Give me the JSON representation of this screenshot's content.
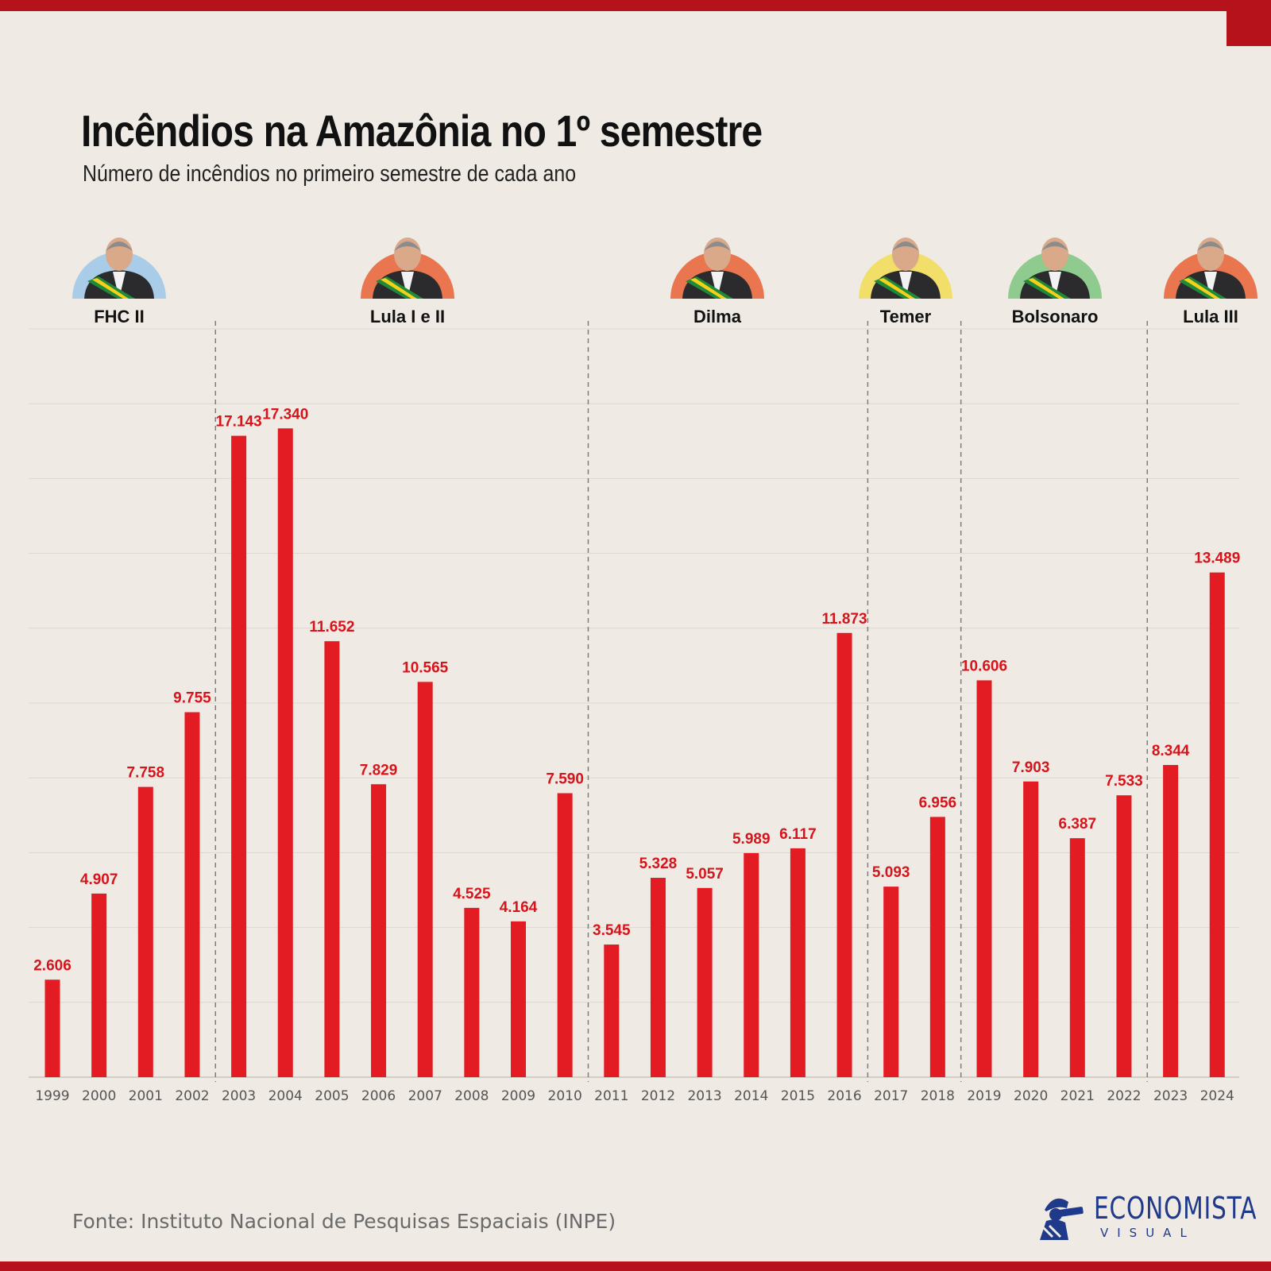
{
  "header": {
    "title": "Incêndios na Amazônia no 1º semestre",
    "subtitle": "Número de incêndios no primeiro semestre de cada ano"
  },
  "footer": {
    "source": "Fonte: Instituto Nacional de Pesquisas Espaciais (INPE)",
    "logo_main": "ECONOMISTA",
    "logo_sub": "VISUAL"
  },
  "colors": {
    "bar": "#e31b23",
    "label": "#d7141c",
    "accent": "#b5121b",
    "blue": "#a9cde9",
    "orange": "#e9764f",
    "yellow": "#f2df6a",
    "green": "#8fcb8f"
  },
  "governments": [
    {
      "name": "FHC II",
      "color": "blue",
      "years": [
        1999,
        2002
      ]
    },
    {
      "name": "Lula I e II",
      "color": "orange",
      "years": [
        2003,
        2010
      ]
    },
    {
      "name": "Dilma",
      "color": "orange",
      "years": [
        2011,
        2016
      ]
    },
    {
      "name": "Temer",
      "color": "yellow",
      "years": [
        2016,
        2018
      ]
    },
    {
      "name": "Bolsonaro",
      "color": "green",
      "years": [
        2019,
        2022
      ]
    },
    {
      "name": "Lula III",
      "color": "orange",
      "years": [
        2023,
        2024
      ]
    }
  ],
  "chart_data": {
    "type": "bar",
    "categories": [
      "1999",
      "2000",
      "2001",
      "2002",
      "2003",
      "2004",
      "2005",
      "2006",
      "2007",
      "2008",
      "2009",
      "2010",
      "2011",
      "2012",
      "2013",
      "2014",
      "2015",
      "2016",
      "2017",
      "2018",
      "2019",
      "2020",
      "2021",
      "2022",
      "2023",
      "2024"
    ],
    "values": [
      2606,
      4907,
      7758,
      9755,
      17143,
      17340,
      11652,
      7829,
      10565,
      4525,
      4164,
      7590,
      3545,
      5328,
      5057,
      5989,
      6117,
      11873,
      5093,
      6956,
      10606,
      7903,
      6387,
      7533,
      8344,
      13489
    ],
    "value_labels": [
      "2.606",
      "4.907",
      "7.758",
      "9.755",
      "17.143",
      "17.340",
      "11.652",
      "7.829",
      "10.565",
      "4.525",
      "4.164",
      "7.590",
      "3.545",
      "5.328",
      "5.057",
      "5.989",
      "6.117",
      "11.873",
      "5.093",
      "6.956",
      "10.606",
      "7.903",
      "6.387",
      "7.533",
      "8.344",
      "13.489"
    ],
    "title": "Incêndios na Amazônia no 1º semestre",
    "xlabel": "",
    "ylabel": "",
    "ylim": [
      0,
      20000
    ],
    "grid": true,
    "legend": "none",
    "government_dividers_after": [
      "2002",
      "2010",
      "2016",
      "2018",
      "2022"
    ]
  }
}
